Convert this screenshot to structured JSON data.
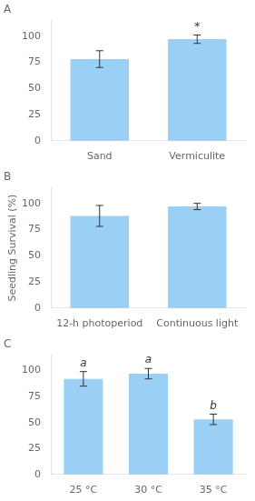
{
  "chart_data": [
    {
      "type": "bar",
      "title": "A",
      "categories": [
        "Sand",
        "Vermiculite"
      ],
      "values": [
        78,
        97
      ],
      "errors": [
        8,
        4
      ],
      "annotations": [
        null,
        "*"
      ],
      "ylim": [
        0,
        115
      ],
      "yticks": [
        0,
        25,
        50,
        75,
        100
      ],
      "grid": false
    },
    {
      "type": "bar",
      "title": "B",
      "ylabel": "Seedling Survival (%)",
      "categories": [
        "12-h photoperiod",
        "Continuous light"
      ],
      "values": [
        88,
        97
      ],
      "errors": [
        10,
        3
      ],
      "ylim": [
        0,
        115
      ],
      "yticks": [
        0,
        25,
        50,
        75,
        100
      ],
      "grid": false
    },
    {
      "type": "bar",
      "title": "C",
      "categories": [
        "25 °C",
        "30 °C",
        "35 °C"
      ],
      "values": [
        92,
        97,
        53
      ],
      "errors": [
        7,
        5,
        5
      ],
      "annotations": [
        "a",
        "a",
        "b"
      ],
      "ylim": [
        0,
        115
      ],
      "yticks": [
        0,
        25,
        50,
        75,
        100
      ],
      "grid": false
    }
  ]
}
